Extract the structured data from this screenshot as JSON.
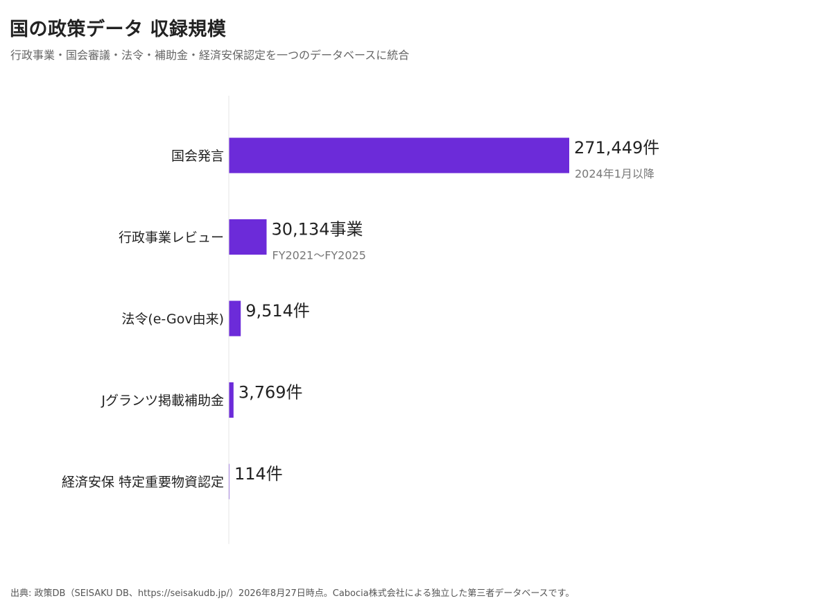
{
  "chart_data": {
    "type": "bar",
    "orientation": "horizontal",
    "title": "国の政策データ 収録規模",
    "subtitle": "行政事業・国会審議・法令・補助金・経済安保認定を一つのデータベースに統合",
    "categories": [
      "国会発言",
      "行政事業レビュー",
      "法令(e-Gov由来)",
      "Jグランツ掲載補助金",
      "経済安保 特定重要物資認定"
    ],
    "values": [
      271449,
      30134,
      9514,
      3769,
      114
    ],
    "value_labels": [
      "271,449件",
      "30,134事業",
      "9,514件",
      "3,769件",
      "114件"
    ],
    "notes": [
      "2024年1月以降",
      "FY2021〜FY2025",
      "",
      "",
      ""
    ],
    "xlim": [
      0,
      271449
    ],
    "grid": false,
    "legend": "none",
    "bar_color": "#6c2bd9",
    "axis_color": "#e6e6e6"
  },
  "footer": "出典: 政策DB（SEISAKU DB、https://seisakudb.jp/）2026年8月27日時点。Cabocia株式会社による独立した第三者データベースです。"
}
